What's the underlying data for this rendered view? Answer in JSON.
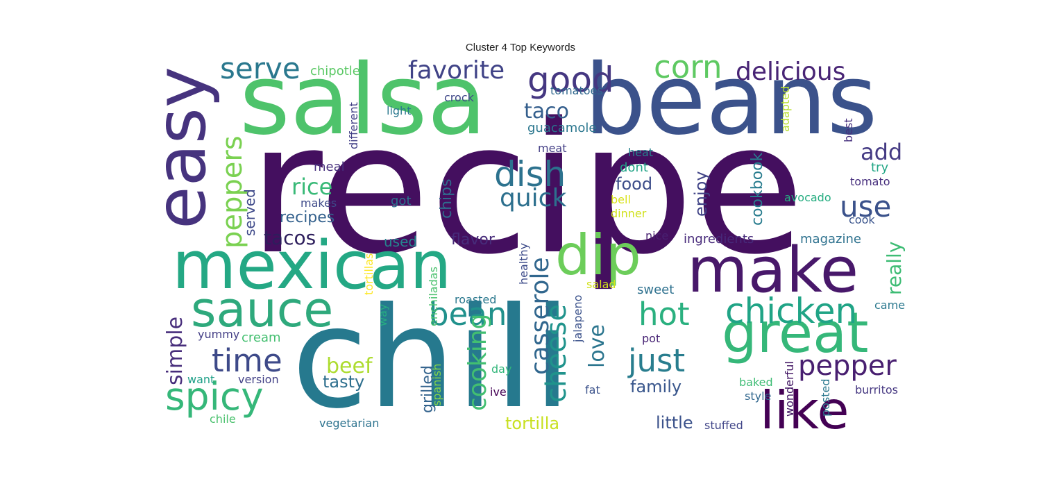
{
  "chart_data": {
    "type": "wordcloud",
    "title": "Cluster 4 Top Keywords",
    "words": [
      {
        "text": "recipe",
        "size": 260,
        "color": "#440f5f",
        "orient": "h"
      },
      {
        "text": "chili",
        "size": 200,
        "color": "#26798e",
        "orient": "h"
      },
      {
        "text": "salsa",
        "size": 140,
        "color": "#4ec36b",
        "orient": "h"
      },
      {
        "text": "beans",
        "size": 140,
        "color": "#3b528b",
        "orient": "h"
      },
      {
        "text": "mexican",
        "size": 95,
        "color": "#24a884",
        "orient": "h"
      },
      {
        "text": "easy",
        "size": 100,
        "color": "#46337e",
        "orient": "v"
      },
      {
        "text": "make",
        "size": 90,
        "color": "#48186a",
        "orient": "h"
      },
      {
        "text": "great",
        "size": 80,
        "color": "#35b779",
        "orient": "h"
      },
      {
        "text": "dip",
        "size": 80,
        "color": "#6ccd5a",
        "orient": "h"
      },
      {
        "text": "sauce",
        "size": 70,
        "color": "#2ea97c",
        "orient": "h"
      },
      {
        "text": "like",
        "size": 75,
        "color": "#440154",
        "orient": "h"
      },
      {
        "text": "spicy",
        "size": 55,
        "color": "#35b779",
        "orient": "h"
      },
      {
        "text": "chicken",
        "size": 50,
        "color": "#20a486",
        "orient": "h"
      },
      {
        "text": "good",
        "size": 50,
        "color": "#453781",
        "orient": "h"
      },
      {
        "text": "dish",
        "size": 50,
        "color": "#2c728e",
        "orient": "h"
      },
      {
        "text": "corn",
        "size": 45,
        "color": "#5ec962",
        "orient": "h"
      },
      {
        "text": "hot",
        "size": 45,
        "color": "#2ab07f",
        "orient": "h"
      },
      {
        "text": "just",
        "size": 45,
        "color": "#287d8e",
        "orient": "h"
      },
      {
        "text": "time",
        "size": 45,
        "color": "#3e4a89",
        "orient": "h"
      },
      {
        "text": "bean",
        "size": 45,
        "color": "#21918c",
        "orient": "h"
      },
      {
        "text": "serve",
        "size": 42,
        "color": "#2a788e",
        "orient": "h"
      },
      {
        "text": "use",
        "size": 42,
        "color": "#3b528b",
        "orient": "h"
      },
      {
        "text": "pepper",
        "size": 40,
        "color": "#481f70",
        "orient": "h"
      },
      {
        "text": "cheese",
        "size": 40,
        "color": "#20938c",
        "orient": "v"
      },
      {
        "text": "peppers",
        "size": 40,
        "color": "#7ad151",
        "orient": "v"
      },
      {
        "text": "favorite",
        "size": 36,
        "color": "#404387",
        "orient": "h"
      },
      {
        "text": "delicious",
        "size": 36,
        "color": "#482475",
        "orient": "h"
      },
      {
        "text": "quick",
        "size": 36,
        "color": "#2d708e",
        "orient": "h"
      },
      {
        "text": "casserole",
        "size": 36,
        "color": "#31678e",
        "orient": "v"
      },
      {
        "text": "cooking",
        "size": 36,
        "color": "#42be71",
        "orient": "v"
      },
      {
        "text": "add",
        "size": 32,
        "color": "#443a83",
        "orient": "h"
      },
      {
        "text": "rice",
        "size": 32,
        "color": "#38b977",
        "orient": "h"
      },
      {
        "text": "taco",
        "size": 30,
        "color": "#355f8d",
        "orient": "h"
      },
      {
        "text": "beef",
        "size": 30,
        "color": "#addc30",
        "orient": "h"
      },
      {
        "text": "love",
        "size": 30,
        "color": "#2b758e",
        "orient": "v"
      },
      {
        "text": "simple",
        "size": 30,
        "color": "#472d7b",
        "orient": "v"
      },
      {
        "text": "tacos",
        "size": 28,
        "color": "#2d1e5c",
        "orient": "h"
      },
      {
        "text": "really",
        "size": 28,
        "color": "#3dbc74",
        "orient": "v"
      },
      {
        "text": "food",
        "size": 24,
        "color": "#3d4e8a",
        "orient": "h"
      },
      {
        "text": "tortilla",
        "size": 24,
        "color": "#c8e020",
        "orient": "h"
      },
      {
        "text": "enjoy",
        "size": 24,
        "color": "#414487",
        "orient": "v"
      },
      {
        "text": "family",
        "size": 24,
        "color": "#39568c",
        "orient": "h"
      },
      {
        "text": "little",
        "size": 24,
        "color": "#3b528b",
        "orient": "h"
      },
      {
        "text": "tasty",
        "size": 24,
        "color": "#2e6f8e",
        "orient": "h"
      },
      {
        "text": "chips",
        "size": 22,
        "color": "#2f6c8e",
        "orient": "v"
      },
      {
        "text": "recipes",
        "size": 22,
        "color": "#34618d",
        "orient": "h"
      },
      {
        "text": "flavor",
        "size": 22,
        "color": "#472c7a",
        "orient": "h"
      },
      {
        "text": "grilled",
        "size": 22,
        "color": "#33638d",
        "orient": "v"
      },
      {
        "text": "cookbook",
        "size": 22,
        "color": "#287c8e",
        "orient": "v"
      },
      {
        "text": "used",
        "size": 20,
        "color": "#25858e",
        "orient": "h"
      },
      {
        "text": "served",
        "size": 20,
        "color": "#3e4989",
        "orient": "v"
      },
      {
        "text": "chipotle",
        "size": 18,
        "color": "#5ac864",
        "orient": "h"
      },
      {
        "text": "guacamole",
        "size": 18,
        "color": "#2a768e",
        "orient": "h"
      },
      {
        "text": "ingredients",
        "size": 18,
        "color": "#472a7a",
        "orient": "h"
      },
      {
        "text": "magazine",
        "size": 18,
        "color": "#2d718e",
        "orient": "h"
      },
      {
        "text": "sweet",
        "size": 18,
        "color": "#2d708e",
        "orient": "h"
      },
      {
        "text": "cream",
        "size": 18,
        "color": "#44bf70",
        "orient": "h"
      },
      {
        "text": "meal",
        "size": 18,
        "color": "#472f7d",
        "orient": "h"
      },
      {
        "text": "makes",
        "size": 16,
        "color": "#3e4a89",
        "orient": "h"
      },
      {
        "text": "got",
        "size": 18,
        "color": "#2c728e",
        "orient": "h"
      },
      {
        "text": "light",
        "size": 16,
        "color": "#2a788e",
        "orient": "h"
      },
      {
        "text": "crock",
        "size": 16,
        "color": "#3f4788",
        "orient": "h"
      },
      {
        "text": "tomatoes",
        "size": 16,
        "color": "#31688e",
        "orient": "h"
      },
      {
        "text": "different",
        "size": 16,
        "color": "#424086",
        "orient": "v"
      },
      {
        "text": "meat",
        "size": 16,
        "color": "#433e85",
        "orient": "h"
      },
      {
        "text": "heat",
        "size": 16,
        "color": "#26828e",
        "orient": "h"
      },
      {
        "text": "dont",
        "size": 18,
        "color": "#20a386",
        "orient": "h"
      },
      {
        "text": "adapted",
        "size": 16,
        "color": "#b5de2b",
        "orient": "v"
      },
      {
        "text": "best",
        "size": 16,
        "color": "#46307e",
        "orient": "v"
      },
      {
        "text": "try",
        "size": 18,
        "color": "#21a685",
        "orient": "h"
      },
      {
        "text": "tomato",
        "size": 16,
        "color": "#472f7d",
        "orient": "h"
      },
      {
        "text": "avocado",
        "size": 16,
        "color": "#26ad81",
        "orient": "h"
      },
      {
        "text": "bell",
        "size": 16,
        "color": "#d8e219",
        "orient": "h"
      },
      {
        "text": "dinner",
        "size": 16,
        "color": "#d0e11c",
        "orient": "h"
      },
      {
        "text": "cook",
        "size": 16,
        "color": "#3a548c",
        "orient": "h"
      },
      {
        "text": "nice",
        "size": 16,
        "color": "#482071",
        "orient": "h"
      },
      {
        "text": "healthy",
        "size": 16,
        "color": "#3e4c8a",
        "orient": "v"
      },
      {
        "text": "tortillas",
        "size": 16,
        "color": "#fde725",
        "orient": "v"
      },
      {
        "text": "enchiladas",
        "size": 16,
        "color": "#4ac16d",
        "orient": "v"
      },
      {
        "text": "salad",
        "size": 16,
        "color": "#d2e21b",
        "orient": "h"
      },
      {
        "text": "roasted",
        "size": 16,
        "color": "#2a788e",
        "orient": "h"
      },
      {
        "text": "way",
        "size": 16,
        "color": "#26ad81",
        "orient": "v"
      },
      {
        "text": "jalapeno",
        "size": 16,
        "color": "#3b528b",
        "orient": "v"
      },
      {
        "text": "came",
        "size": 16,
        "color": "#2a788e",
        "orient": "h"
      },
      {
        "text": "yummy",
        "size": 16,
        "color": "#433e85",
        "orient": "h"
      },
      {
        "text": "pot",
        "size": 16,
        "color": "#482475",
        "orient": "h"
      },
      {
        "text": "day",
        "size": 16,
        "color": "#32b67a",
        "orient": "h"
      },
      {
        "text": "want",
        "size": 16,
        "color": "#1fa088",
        "orient": "h"
      },
      {
        "text": "version",
        "size": 16,
        "color": "#424086",
        "orient": "h"
      },
      {
        "text": "spanish",
        "size": 16,
        "color": "#86d549",
        "orient": "v"
      },
      {
        "text": "ive",
        "size": 16,
        "color": "#440154",
        "orient": "h"
      },
      {
        "text": "fat",
        "size": 16,
        "color": "#3b528b",
        "orient": "h"
      },
      {
        "text": "wonderful",
        "size": 16,
        "color": "#3c0f5f",
        "orient": "v"
      },
      {
        "text": "posted",
        "size": 16,
        "color": "#2a788e",
        "orient": "v"
      },
      {
        "text": "baked",
        "size": 16,
        "color": "#3dbc74",
        "orient": "h"
      },
      {
        "text": "style",
        "size": 16,
        "color": "#31678e",
        "orient": "h"
      },
      {
        "text": "burritos",
        "size": 16,
        "color": "#453781",
        "orient": "h"
      },
      {
        "text": "chile",
        "size": 16,
        "color": "#4ac16d",
        "orient": "h"
      },
      {
        "text": "vegetarian",
        "size": 16,
        "color": "#2c728e",
        "orient": "h"
      },
      {
        "text": "stuffed",
        "size": 16,
        "color": "#404588",
        "orient": "h"
      }
    ]
  }
}
